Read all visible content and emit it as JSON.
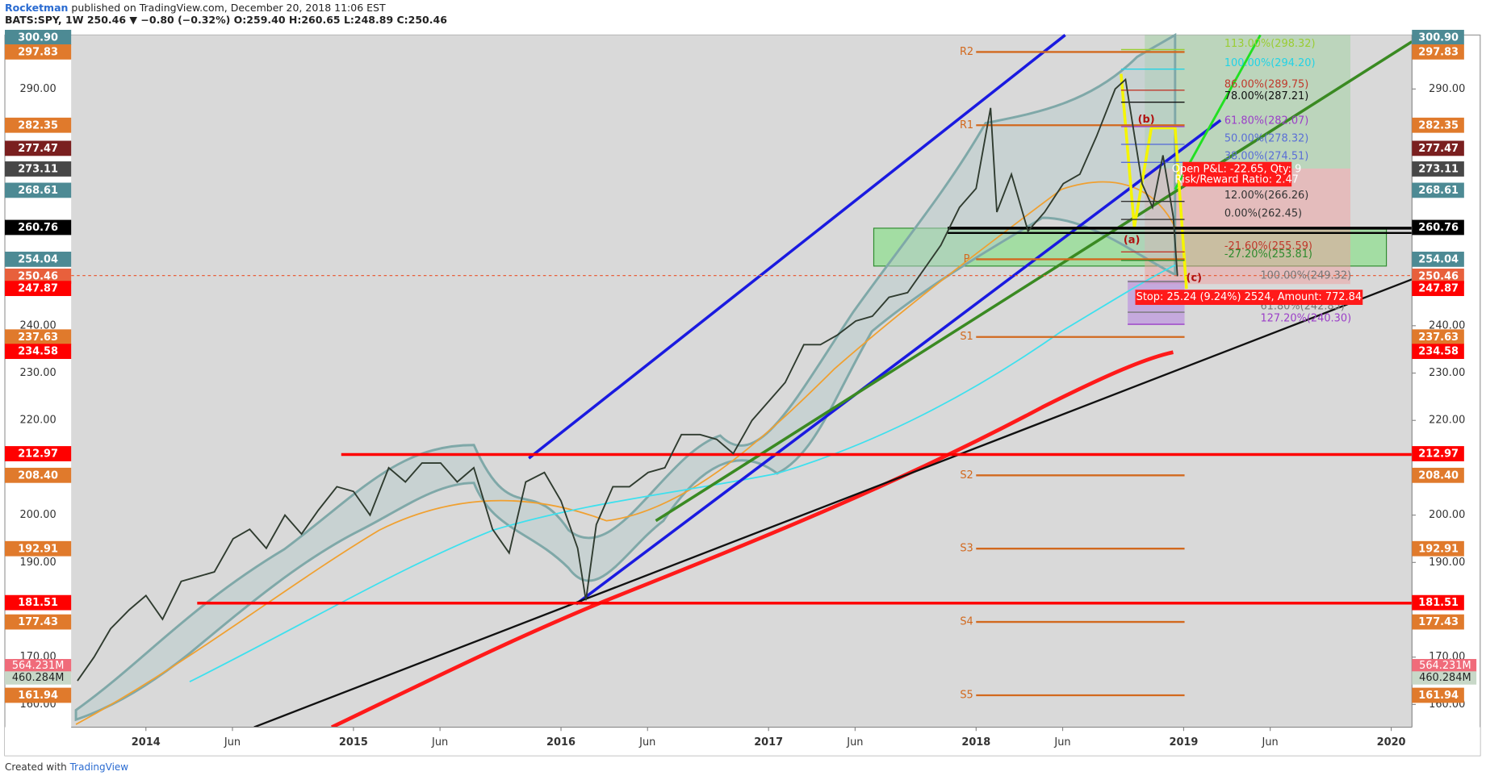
{
  "chart_data": {
    "type": "line",
    "author": "Rocketman",
    "title": "published on TradingView.com, December 20, 2018 11:06 EST",
    "subtitle": "BATS:SPY, 1W 250.46 ▼ −0.80 (−0.32%) O:259.40 H:260.65 L:248.89 C:250.46",
    "footer": "Created with",
    "footer_brand": "TradingView",
    "color": "#2f3b2f",
    "xlim": [
      2013.64,
      2020.1
    ],
    "xticks": [
      {
        "value": 2014,
        "label": "2014"
      },
      {
        "value": 2014.417,
        "label": "Jun"
      },
      {
        "value": 2015,
        "label": "2015"
      },
      {
        "value": 2015.417,
        "label": "Jun"
      },
      {
        "value": 2016,
        "label": "2016"
      },
      {
        "value": 2016.417,
        "label": "Jun"
      },
      {
        "value": 2017,
        "label": "2017"
      },
      {
        "value": 2017.417,
        "label": "Jun"
      },
      {
        "value": 2018,
        "label": "2018"
      },
      {
        "value": 2018.417,
        "label": "Jun"
      },
      {
        "value": 2019,
        "label": "2019"
      },
      {
        "value": 2019.417,
        "label": "Jun"
      },
      {
        "value": 2020,
        "label": "2020"
      }
    ],
    "ylim": [
      155.2,
      301.4
    ],
    "yticks": [
      {
        "value": 160,
        "label": "160.00"
      },
      {
        "value": 170,
        "label": "170.00"
      },
      {
        "value": 190,
        "label": "190.00"
      },
      {
        "value": 200,
        "label": "200.00"
      },
      {
        "value": 220,
        "label": "220.00"
      },
      {
        "value": 230,
        "label": "230.00"
      },
      {
        "value": 240,
        "label": "240.00"
      },
      {
        "value": 290,
        "label": "290.00"
      }
    ],
    "grid": false,
    "x": [
      2013.67,
      2013.75,
      2013.83,
      2013.92,
      2014.0,
      2014.08,
      2014.17,
      2014.25,
      2014.33,
      2014.42,
      2014.5,
      2014.58,
      2014.67,
      2014.75,
      2014.83,
      2014.92,
      2015.0,
      2015.08,
      2015.17,
      2015.25,
      2015.33,
      2015.42,
      2015.5,
      2015.58,
      2015.67,
      2015.75,
      2015.83,
      2015.92,
      2016.0,
      2016.08,
      2016.12,
      2016.17,
      2016.25,
      2016.33,
      2016.42,
      2016.5,
      2016.58,
      2016.67,
      2016.75,
      2016.83,
      2016.92,
      2017.0,
      2017.08,
      2017.17,
      2017.25,
      2017.33,
      2017.42,
      2017.5,
      2017.58,
      2017.67,
      2017.75,
      2017.83,
      2017.92,
      2018.0,
      2018.07,
      2018.1,
      2018.17,
      2018.25,
      2018.33,
      2018.42,
      2018.5,
      2018.58,
      2018.67,
      2018.72,
      2018.8,
      2018.85,
      2018.9,
      2018.95,
      2018.97
    ],
    "values": [
      165,
      170,
      176,
      180,
      183,
      178,
      186,
      187,
      188,
      195,
      197,
      193,
      200,
      196,
      201,
      206,
      205,
      200,
      210,
      207,
      211,
      211,
      207,
      210,
      197,
      192,
      207,
      209,
      203,
      193,
      182,
      198,
      206,
      206,
      209,
      210,
      217,
      217,
      216,
      213,
      220,
      224,
      228,
      236,
      236,
      238,
      241,
      242,
      246,
      247,
      252,
      257,
      265,
      269,
      286,
      264,
      272,
      260,
      264,
      270,
      272,
      280,
      290,
      292,
      270,
      265,
      276,
      263,
      250.46
    ],
    "price_tags": [
      {
        "value": 300.9,
        "label": "300.90",
        "color": "#4d8a94"
      },
      {
        "value": 297.83,
        "label": "297.83",
        "color": "#e07a2c"
      },
      {
        "value": 282.35,
        "label": "282.35",
        "color": "#e07a2c"
      },
      {
        "value": 277.47,
        "label": "277.47",
        "color": "#7a1f1f"
      },
      {
        "value": 273.11,
        "label": "273.11",
        "color": "#474747"
      },
      {
        "value": 268.61,
        "label": "268.61",
        "color": "#4d8a94"
      },
      {
        "value": 260.76,
        "label": "260.76",
        "color": "#000000"
      },
      {
        "value": 254.04,
        "label": "254.04",
        "color": "#4d8a94"
      },
      {
        "value": 250.46,
        "label": "250.46",
        "color": "#e8603c"
      },
      {
        "value": 247.87,
        "label": "247.87",
        "color": "#ff0000"
      },
      {
        "value": 237.63,
        "label": "237.63",
        "color": "#e07a2c"
      },
      {
        "value": 234.58,
        "label": "234.58",
        "color": "#ff0000"
      },
      {
        "value": 212.97,
        "label": "212.97",
        "color": "#ff0000"
      },
      {
        "value": 208.4,
        "label": "208.40",
        "color": "#e07a2c"
      },
      {
        "value": 192.91,
        "label": "192.91",
        "color": "#e07a2c"
      },
      {
        "value": 181.51,
        "label": "181.51",
        "color": "#ff0000"
      },
      {
        "value": 177.43,
        "label": "177.43",
        "color": "#e07a2c"
      },
      {
        "value": 161.94,
        "label": "161.94",
        "color": "#e07a2c"
      }
    ],
    "volume_tags": [
      {
        "label": "564.231M",
        "color": "#f06b7a"
      },
      {
        "label": "460.284M",
        "color": "#c8d8c8"
      }
    ],
    "pivots": [
      {
        "label": "R2",
        "value": 297.83
      },
      {
        "label": "R1",
        "value": 282.35
      },
      {
        "label": "P",
        "value": 254.04
      },
      {
        "label": "S1",
        "value": 237.63
      },
      {
        "label": "S2",
        "value": 208.4
      },
      {
        "label": "S3",
        "value": 192.91
      },
      {
        "label": "S4",
        "value": 177.43
      },
      {
        "label": "S5",
        "value": 161.94
      }
    ],
    "fib_levels": [
      {
        "label": "113.00%(298.32)",
        "value": 298.32,
        "color": "#9acd32"
      },
      {
        "label": "100.00%(294.20)",
        "value": 294.2,
        "color": "#22d3e6"
      },
      {
        "label": "86.00%(289.75)",
        "value": 289.75,
        "color": "#c0392b"
      },
      {
        "label": "78.00%(287.21)",
        "value": 287.21,
        "color": "#111111"
      },
      {
        "label": "61.80%(282.07)",
        "value": 282.07,
        "color": "#9b3fc8"
      },
      {
        "label": "50.00%(278.32)",
        "value": 278.32,
        "color": "#5a6fd6"
      },
      {
        "label": "38.00%(274.51)",
        "value": 274.51,
        "color": "#5a6fd6"
      },
      {
        "label": "12.00%(266.26)",
        "value": 266.26,
        "color": "#333333"
      },
      {
        "label": "0.00%(262.45)",
        "value": 262.45,
        "color": "#333333"
      },
      {
        "label": "-21.60%(255.59)",
        "value": 255.59,
        "color": "#c0392b"
      },
      {
        "label": "-27.20%(253.81)",
        "value": 253.81,
        "color": "#2e8b2e"
      },
      {
        "label": "100.00%(249.32)",
        "value": 249.32,
        "color": "#777777"
      },
      {
        "label": "61.80%(242.85)",
        "value": 242.85,
        "color": "#777777"
      },
      {
        "label": "127.20%(240.30)",
        "value": 240.3,
        "color": "#9b3fc8"
      }
    ],
    "waves": [
      {
        "label": "(a)",
        "x": 2018.75,
        "value": 258
      },
      {
        "label": "(b)",
        "x": 2018.82,
        "value": 283.5
      },
      {
        "label": "(c)",
        "x": 2019.05,
        "value": 250
      }
    ],
    "trade": {
      "pnl": "Open P&L: -22.65, Qty: 9",
      "ratio": "Risk/Reward Ratio: 2.47",
      "stop": "Stop: 25.24 (9.24%) 2524, Amount: 772.84"
    }
  }
}
